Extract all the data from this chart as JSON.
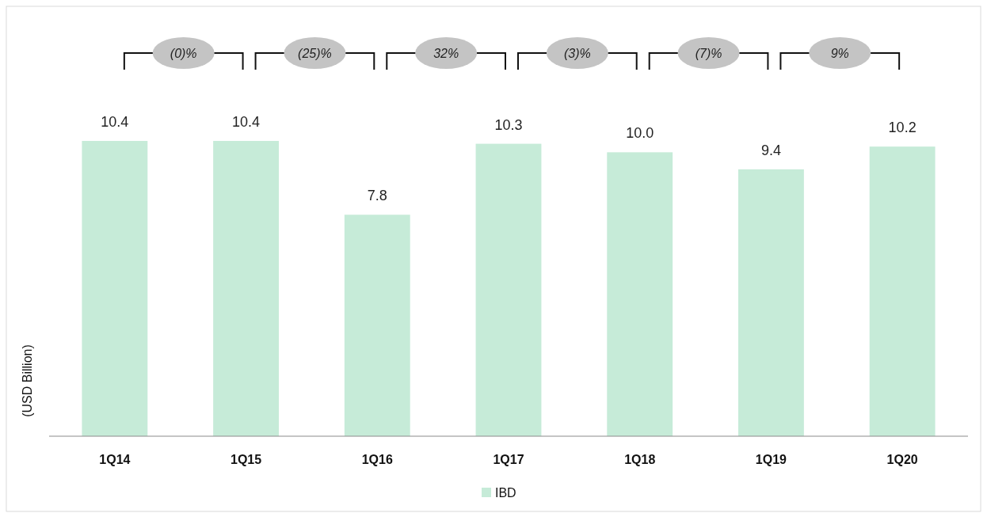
{
  "chart_data": {
    "type": "bar",
    "ylabel": "(USD Billion)",
    "categories": [
      "1Q14",
      "1Q15",
      "1Q16",
      "1Q17",
      "1Q18",
      "1Q19",
      "1Q20"
    ],
    "series": [
      {
        "name": "IBD",
        "color": "#c6ebd8",
        "values": [
          10.4,
          10.4,
          7.8,
          10.3,
          10.0,
          9.4,
          10.2
        ],
        "value_labels": [
          "10.4",
          "10.4",
          "7.8",
          "10.3",
          "10.0",
          "9.4",
          "10.2"
        ]
      }
    ],
    "annotations": [
      "(0)%",
      "(25)%",
      "32%",
      "(3)%",
      "(7)%",
      "9%"
    ],
    "legend": "bottom"
  }
}
